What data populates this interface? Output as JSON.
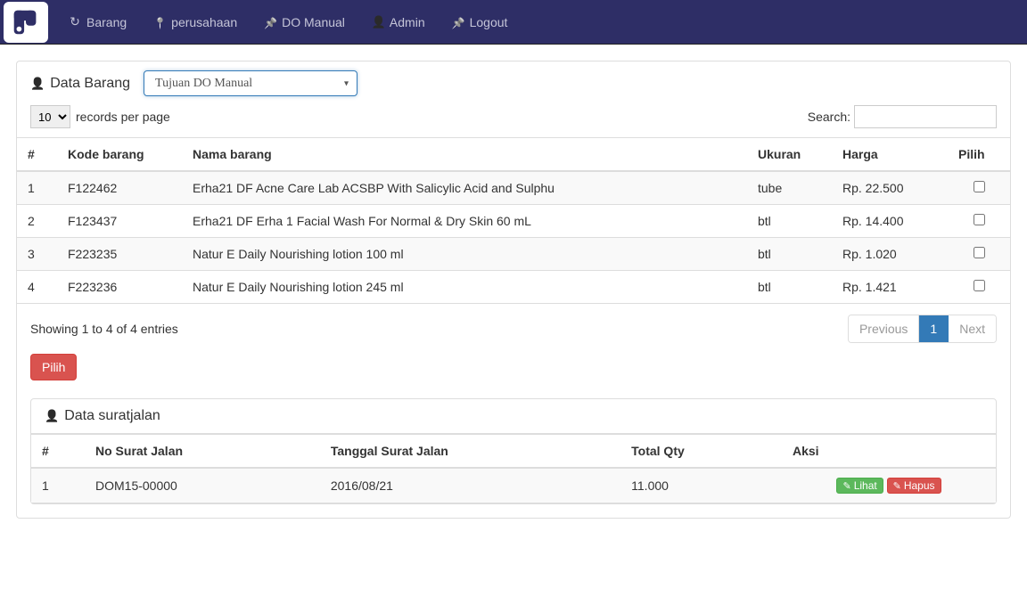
{
  "navbar": {
    "items": [
      {
        "label": "Barang",
        "icon": "refresh-icon"
      },
      {
        "label": "perusahaan",
        "icon": "marker-icon"
      },
      {
        "label": "DO Manual",
        "icon": "pin-icon"
      },
      {
        "label": "Admin",
        "icon": "user-icon"
      },
      {
        "label": "Logout",
        "icon": "pin-icon"
      }
    ]
  },
  "panel_barang": {
    "title": "Data Barang",
    "tujuan_placeholder": "Tujuan  DO   Manual",
    "records_label": "records per page",
    "records_value": "10",
    "search_label": "Search:",
    "columns": [
      "#",
      "Kode barang",
      "Nama barang",
      "Ukuran",
      "Harga",
      "Pilih"
    ],
    "rows": [
      {
        "num": "1",
        "kode": "F122462",
        "nama": "Erha21 DF Acne Care Lab ACSBP With Salicylic Acid and Sulphu",
        "ukuran": "tube",
        "harga": "Rp. 22.500"
      },
      {
        "num": "2",
        "kode": "F123437",
        "nama": "Erha21 DF Erha 1 Facial Wash For Normal & Dry Skin 60 mL",
        "ukuran": "btl",
        "harga": "Rp. 14.400"
      },
      {
        "num": "3",
        "kode": "F223235",
        "nama": "Natur E Daily Nourishing lotion 100 ml",
        "ukuran": "btl",
        "harga": "Rp. 1.020"
      },
      {
        "num": "4",
        "kode": "F223236",
        "nama": "Natur E Daily Nourishing lotion 245 ml",
        "ukuran": "btl",
        "harga": "Rp. 1.421"
      }
    ],
    "info_text": "Showing 1 to 4 of 4 entries",
    "pagination": {
      "previous": "Previous",
      "page": "1",
      "next": "Next"
    },
    "pilih_button": "Pilih"
  },
  "panel_sj": {
    "title": "Data suratjalan",
    "columns": [
      "#",
      "No Surat Jalan",
      "Tanggal Surat Jalan",
      "Total Qty",
      "Aksi"
    ],
    "rows": [
      {
        "num": "1",
        "no": "DOM15-00000",
        "tgl": "2016/08/21",
        "qty": "11.000"
      }
    ],
    "lihat_label": "Lihat",
    "hapus_label": "Hapus"
  },
  "colors": {
    "navbar_bg": "#2e2e66",
    "primary": "#337ab7",
    "danger": "#d9534f",
    "success": "#5cb85c"
  }
}
